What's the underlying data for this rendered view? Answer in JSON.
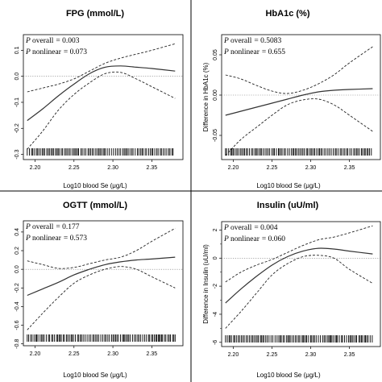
{
  "chart_data": [
    {
      "type": "line",
      "title": "FPG (mmol/L)",
      "ylabel": "",
      "xlabel": "Log10 blood Se (μg/L)",
      "stats": {
        "overall_label": "overall",
        "overall_value": "= 0.003",
        "nonlinear_label": "nonlinear",
        "nonlinear_value": "= 0.073"
      },
      "xlim": [
        2.185,
        2.39
      ],
      "ylim": [
        -0.32,
        0.16
      ],
      "xticks": [
        "2.20",
        "2.25",
        "2.30",
        "2.35"
      ],
      "xtick_values": [
        2.2,
        2.25,
        2.3,
        2.35
      ],
      "yticks": [
        "-0.3",
        "-0.2",
        "-0.1",
        "0.0",
        "0.1"
      ],
      "ytick_values": [
        -0.3,
        -0.2,
        -0.1,
        0.0,
        0.1
      ],
      "reference_line": 0,
      "rug_range": [
        2.19,
        2.38
      ],
      "series": [
        {
          "role": "estimate",
          "x": [
            2.19,
            2.21,
            2.23,
            2.25,
            2.27,
            2.29,
            2.31,
            2.33,
            2.35,
            2.38
          ],
          "values": [
            -0.17,
            -0.125,
            -0.075,
            -0.03,
            0.01,
            0.035,
            0.04,
            0.035,
            0.03,
            0.02
          ]
        },
        {
          "role": "upper_ci",
          "x": [
            2.19,
            2.21,
            2.23,
            2.25,
            2.27,
            2.29,
            2.31,
            2.33,
            2.35,
            2.38
          ],
          "values": [
            -0.06,
            -0.045,
            -0.03,
            -0.01,
            0.02,
            0.05,
            0.07,
            0.085,
            0.1,
            0.125
          ]
        },
        {
          "role": "lower_ci",
          "x": [
            2.19,
            2.21,
            2.23,
            2.25,
            2.27,
            2.29,
            2.31,
            2.33,
            2.35,
            2.38
          ],
          "values": [
            -0.28,
            -0.21,
            -0.13,
            -0.07,
            -0.025,
            0.01,
            0.015,
            -0.01,
            -0.04,
            -0.085
          ]
        }
      ]
    },
    {
      "type": "line",
      "title": "HbA1c (%)",
      "ylabel": "Difference in HbA1c (%)",
      "xlabel": "Log10 blood Se (μg/L)",
      "stats": {
        "overall_label": "overall",
        "overall_value": "= 0.5083",
        "nonlinear_label": "nonlinear",
        "nonlinear_value": "= 0.655"
      },
      "xlim": [
        2.185,
        2.39
      ],
      "ylim": [
        -0.08,
        0.075
      ],
      "xticks": [
        "2.20",
        "2.25",
        "2.30",
        "2.35"
      ],
      "xtick_values": [
        2.2,
        2.25,
        2.3,
        2.35
      ],
      "yticks": [
        "-0.05",
        "0.00",
        "0.05"
      ],
      "ytick_values": [
        -0.05,
        0.0,
        0.05
      ],
      "reference_line": 0,
      "rug_range": [
        2.19,
        2.38
      ],
      "series": [
        {
          "role": "estimate",
          "x": [
            2.19,
            2.21,
            2.23,
            2.25,
            2.27,
            2.29,
            2.31,
            2.33,
            2.35,
            2.38
          ],
          "values": [
            -0.025,
            -0.02,
            -0.015,
            -0.01,
            -0.005,
            0.0,
            0.004,
            0.006,
            0.007,
            0.008
          ]
        },
        {
          "role": "upper_ci",
          "x": [
            2.19,
            2.21,
            2.23,
            2.25,
            2.27,
            2.29,
            2.31,
            2.33,
            2.35,
            2.38
          ],
          "values": [
            0.025,
            0.02,
            0.012,
            0.005,
            0.002,
            0.006,
            0.014,
            0.025,
            0.04,
            0.06
          ]
        },
        {
          "role": "lower_ci",
          "x": [
            2.19,
            2.21,
            2.23,
            2.25,
            2.27,
            2.29,
            2.31,
            2.33,
            2.35,
            2.38
          ],
          "values": [
            -0.075,
            -0.055,
            -0.04,
            -0.025,
            -0.012,
            -0.006,
            -0.005,
            -0.012,
            -0.025,
            -0.045
          ]
        }
      ]
    },
    {
      "type": "line",
      "title": "OGTT (mmol/L)",
      "ylabel": "",
      "xlabel": "Log10 blood Se (μg/L)",
      "stats": {
        "overall_label": "overall",
        "overall_value": "= 0.177",
        "nonlinear_label": "nonlinear",
        "nonlinear_value": "= 0.573"
      },
      "xlim": [
        2.185,
        2.39
      ],
      "ylim": [
        -0.82,
        0.52
      ],
      "xticks": [
        "2.20",
        "2.25",
        "2.30",
        "2.35"
      ],
      "xtick_values": [
        2.2,
        2.25,
        2.3,
        2.35
      ],
      "yticks": [
        "-0.8",
        "-0.6",
        "-0.4",
        "-0.2",
        "0.0",
        "0.2",
        "0.4"
      ],
      "ytick_values": [
        -0.8,
        -0.6,
        -0.4,
        -0.2,
        0.0,
        0.2,
        0.4
      ],
      "reference_line": 0,
      "rug_range": [
        2.19,
        2.38
      ],
      "series": [
        {
          "role": "estimate",
          "x": [
            2.19,
            2.21,
            2.23,
            2.25,
            2.27,
            2.29,
            2.31,
            2.33,
            2.35,
            2.38
          ],
          "values": [
            -0.28,
            -0.21,
            -0.14,
            -0.06,
            0.0,
            0.05,
            0.08,
            0.1,
            0.11,
            0.13
          ]
        },
        {
          "role": "upper_ci",
          "x": [
            2.19,
            2.21,
            2.23,
            2.25,
            2.27,
            2.29,
            2.31,
            2.33,
            2.35,
            2.38
          ],
          "values": [
            0.09,
            0.05,
            0.01,
            0.02,
            0.06,
            0.1,
            0.13,
            0.2,
            0.3,
            0.44
          ]
        },
        {
          "role": "lower_ci",
          "x": [
            2.19,
            2.21,
            2.23,
            2.25,
            2.27,
            2.29,
            2.31,
            2.33,
            2.35,
            2.38
          ],
          "values": [
            -0.65,
            -0.47,
            -0.3,
            -0.15,
            -0.06,
            0.0,
            0.03,
            0.0,
            -0.08,
            -0.2
          ]
        }
      ]
    },
    {
      "type": "line",
      "title": "Insulin (uU/ml)",
      "ylabel": "Difference in Insulin (uU/ml)",
      "xlabel": "Log10 blood Se (μg/L)",
      "stats": {
        "overall_label": "overall",
        "overall_value": "= 0.004",
        "nonlinear_label": "nonlinear",
        "nonlinear_value": "= 0.060"
      },
      "xlim": [
        2.185,
        2.39
      ],
      "ylim": [
        -6.3,
        2.6
      ],
      "xticks": [
        "2.20",
        "2.25",
        "2.30",
        "2.35"
      ],
      "xtick_values": [
        2.2,
        2.25,
        2.3,
        2.35
      ],
      "yticks": [
        "-6",
        "-4",
        "-2",
        "0",
        "2"
      ],
      "ytick_values": [
        -6,
        -4,
        -2,
        0,
        2
      ],
      "minor_yticks": [
        -5,
        -3,
        -1,
        1
      ],
      "reference_line": 0,
      "rug_range": [
        2.19,
        2.38
      ],
      "series": [
        {
          "role": "estimate",
          "x": [
            2.19,
            2.21,
            2.23,
            2.25,
            2.27,
            2.29,
            2.31,
            2.33,
            2.35,
            2.38
          ],
          "values": [
            -3.2,
            -2.2,
            -1.3,
            -0.5,
            0.1,
            0.5,
            0.7,
            0.65,
            0.5,
            0.3
          ]
        },
        {
          "role": "upper_ci",
          "x": [
            2.19,
            2.21,
            2.23,
            2.25,
            2.27,
            2.29,
            2.31,
            2.33,
            2.35,
            2.38
          ],
          "values": [
            -1.7,
            -1.0,
            -0.5,
            -0.1,
            0.4,
            0.9,
            1.3,
            1.5,
            1.8,
            2.3
          ]
        },
        {
          "role": "lower_ci",
          "x": [
            2.19,
            2.21,
            2.23,
            2.25,
            2.27,
            2.29,
            2.31,
            2.33,
            2.35,
            2.38
          ],
          "values": [
            -5.0,
            -3.8,
            -2.5,
            -1.2,
            -0.4,
            0.1,
            0.2,
            0.0,
            -0.8,
            -1.8
          ]
        }
      ]
    }
  ]
}
